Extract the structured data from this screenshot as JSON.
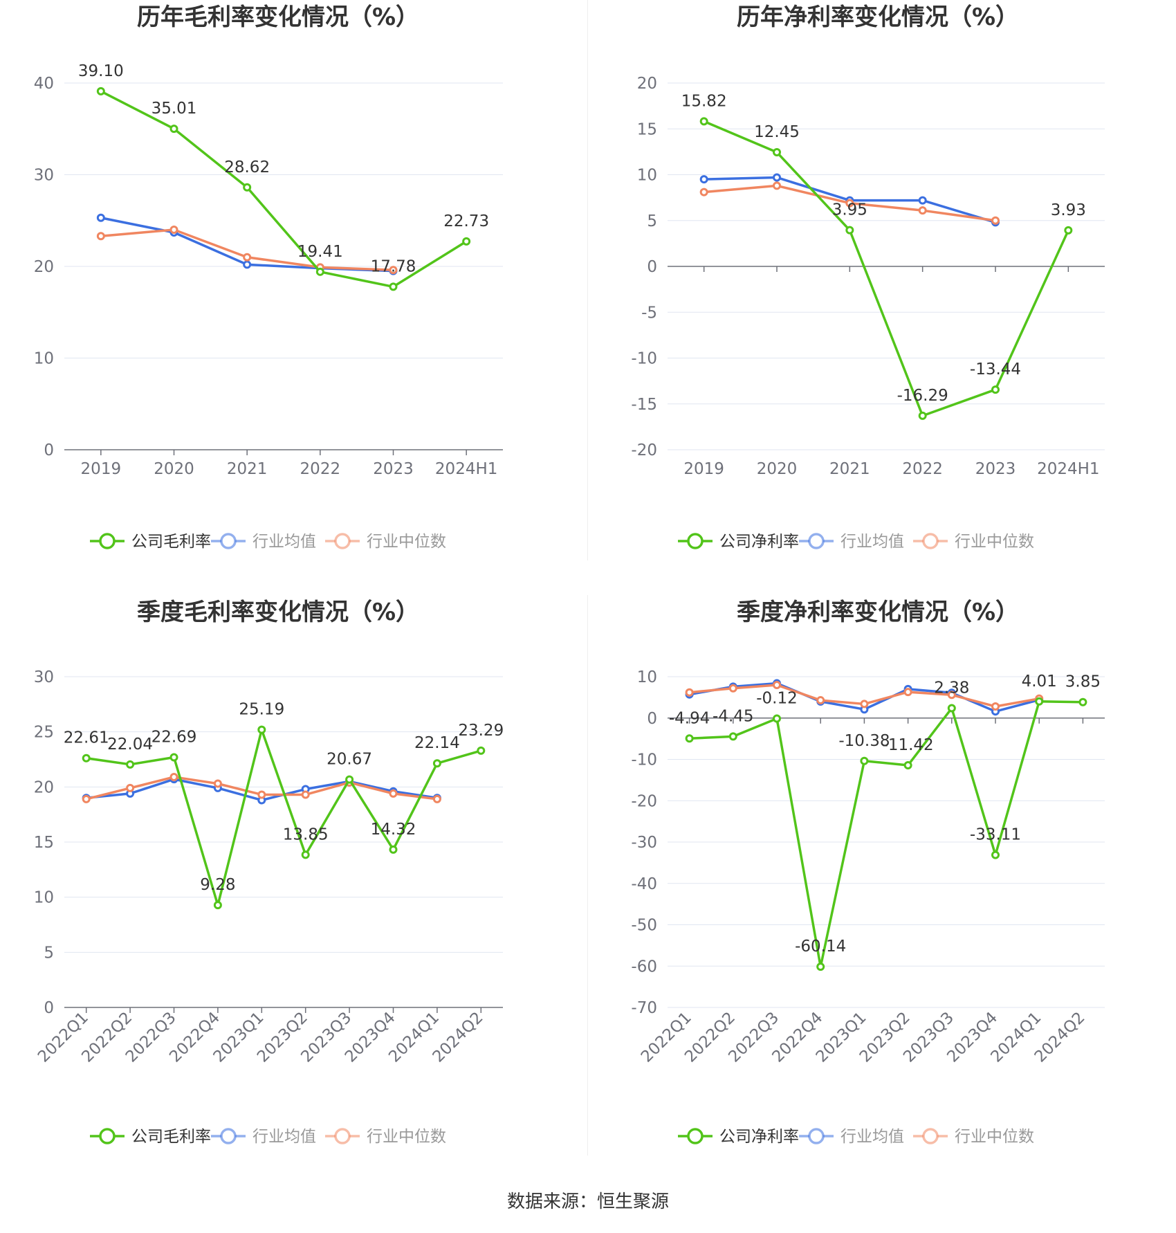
{
  "colors": {
    "company": "#52c41a",
    "avg": "#3b6fe0",
    "median": "#f08660",
    "grid": "#e0e6f1",
    "axis": "#6e7079"
  },
  "source_text": "数据来源：恒生聚源",
  "chart_data": [
    {
      "type": "line",
      "title": "历年毛利率变化情况（%）",
      "categories": [
        "2019",
        "2020",
        "2021",
        "2022",
        "2023",
        "2024H1"
      ],
      "ylim": [
        0,
        40
      ],
      "yticks": [
        0,
        10,
        20,
        30,
        40
      ],
      "grid": true,
      "legend": "bottom",
      "series": [
        {
          "name": "公司毛利率",
          "values": [
            39.1,
            35.01,
            28.62,
            19.41,
            17.78,
            22.73
          ],
          "labels": [
            "39.10",
            "35.01",
            "28.62",
            "19.41",
            "17.78",
            "22.73"
          ]
        },
        {
          "name": "行业均值",
          "values": [
            25.3,
            23.7,
            20.2,
            19.8,
            19.5,
            null
          ]
        },
        {
          "name": "行业中位数",
          "values": [
            23.3,
            24.0,
            21.0,
            19.9,
            19.6,
            null
          ]
        }
      ]
    },
    {
      "type": "line",
      "title": "历年净利率变化情况（%）",
      "categories": [
        "2019",
        "2020",
        "2021",
        "2022",
        "2023",
        "2024H1"
      ],
      "ylim": [
        -20,
        20
      ],
      "yticks": [
        -20,
        -15,
        -10,
        -5,
        0,
        5,
        10,
        15,
        20
      ],
      "grid": true,
      "legend": "bottom",
      "series": [
        {
          "name": "公司净利率",
          "values": [
            15.82,
            12.45,
            3.95,
            -16.29,
            -13.44,
            3.93
          ],
          "labels": [
            "15.82",
            "12.45",
            "3.95",
            "-16.29",
            "-13.44",
            "3.93"
          ]
        },
        {
          "name": "行业均值",
          "values": [
            9.5,
            9.7,
            7.2,
            7.2,
            4.8,
            null
          ]
        },
        {
          "name": "行业中位数",
          "values": [
            8.1,
            8.8,
            6.9,
            6.1,
            5.0,
            null
          ]
        }
      ]
    },
    {
      "type": "line",
      "title": "季度毛利率变化情况（%）",
      "categories": [
        "2022Q1",
        "2022Q2",
        "2022Q3",
        "2022Q4",
        "2023Q1",
        "2023Q2",
        "2023Q3",
        "2023Q4",
        "2024Q1",
        "2024Q2"
      ],
      "ylim": [
        0,
        30
      ],
      "yticks": [
        0,
        5,
        10,
        15,
        20,
        25,
        30
      ],
      "grid": true,
      "legend": "bottom",
      "series": [
        {
          "name": "公司毛利率",
          "values": [
            22.61,
            22.04,
            22.69,
            9.28,
            25.19,
            13.85,
            20.67,
            14.32,
            22.14,
            23.29
          ],
          "labels": [
            "22.61",
            "22.04",
            "22.69",
            "9.28",
            "25.19",
            "13.85",
            "20.67",
            "14.32",
            "22.14",
            "23.29"
          ]
        },
        {
          "name": "行业均值",
          "values": [
            19.0,
            19.4,
            20.7,
            19.9,
            18.8,
            19.8,
            20.5,
            19.6,
            19.0,
            null
          ]
        },
        {
          "name": "行业中位数",
          "values": [
            18.9,
            19.9,
            20.9,
            20.3,
            19.3,
            19.3,
            20.4,
            19.4,
            18.9,
            null
          ]
        }
      ]
    },
    {
      "type": "line",
      "title": "季度净利率变化情况（%）",
      "categories": [
        "2022Q1",
        "2022Q2",
        "2022Q3",
        "2022Q4",
        "2023Q1",
        "2023Q2",
        "2023Q3",
        "2023Q4",
        "2024Q1",
        "2024Q2"
      ],
      "ylim": [
        -70,
        10
      ],
      "yticks": [
        -70,
        -60,
        -50,
        -40,
        -30,
        -20,
        -10,
        0,
        10
      ],
      "grid": true,
      "legend": "bottom",
      "series": [
        {
          "name": "公司净利率",
          "values": [
            -4.94,
            -4.45,
            -0.12,
            -60.14,
            -10.38,
            -11.42,
            2.38,
            -33.11,
            4.01,
            3.85
          ],
          "labels": [
            "-4.94",
            "-4.45",
            "-0.12",
            "-60.14",
            "-10.38",
            "-11.42",
            "2.38",
            "-33.11",
            "4.01",
            "3.85"
          ]
        },
        {
          "name": "行业均值",
          "values": [
            5.7,
            7.6,
            8.4,
            4.0,
            2.1,
            7.0,
            6.1,
            1.6,
            4.4,
            null
          ]
        },
        {
          "name": "行业中位数",
          "values": [
            6.2,
            7.2,
            8.0,
            4.3,
            3.4,
            6.3,
            5.6,
            2.8,
            4.7,
            null
          ]
        }
      ]
    }
  ]
}
